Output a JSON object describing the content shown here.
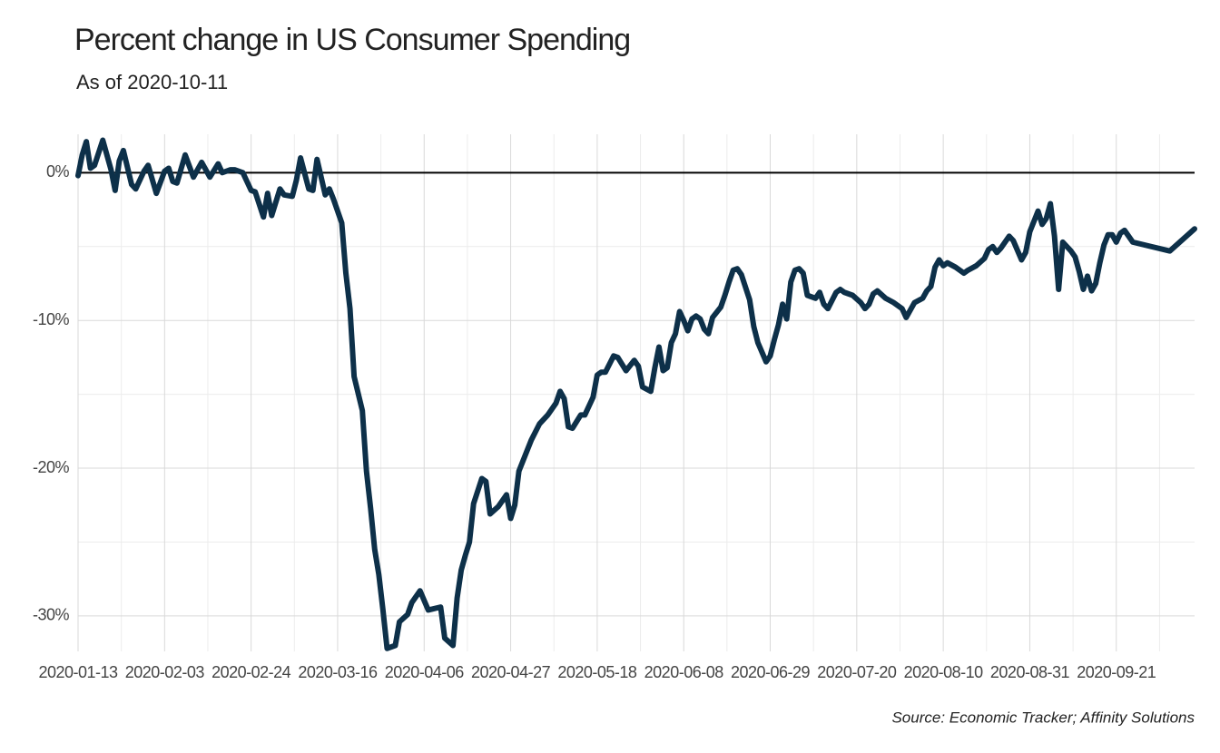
{
  "chart_data": {
    "type": "line",
    "title": "Percent change in US Consumer Spending",
    "subtitle": "As of 2020-10-11",
    "caption": "Source: Economic Tracker; Affinity Solutions",
    "x": [
      "2020-01-13",
      "2020-01-14",
      "2020-01-15",
      "2020-01-16",
      "2020-01-17",
      "2020-01-19",
      "2020-01-21",
      "2020-01-22",
      "2020-01-23",
      "2020-01-24",
      "2020-01-26",
      "2020-01-27",
      "2020-01-29",
      "2020-01-30",
      "2020-02-01",
      "2020-02-03",
      "2020-02-04",
      "2020-02-05",
      "2020-02-06",
      "2020-02-08",
      "2020-02-10",
      "2020-02-12",
      "2020-02-14",
      "2020-02-16",
      "2020-02-17",
      "2020-02-19",
      "2020-02-20",
      "2020-02-22",
      "2020-02-24",
      "2020-02-25",
      "2020-02-27",
      "2020-02-28",
      "2020-02-29",
      "2020-03-02",
      "2020-03-03",
      "2020-03-05",
      "2020-03-06",
      "2020-03-07",
      "2020-03-09",
      "2020-03-10",
      "2020-03-11",
      "2020-03-13",
      "2020-03-14",
      "2020-03-15",
      "2020-03-17",
      "2020-03-18",
      "2020-03-19",
      "2020-03-20",
      "2020-03-22",
      "2020-03-23",
      "2020-03-24",
      "2020-03-25",
      "2020-03-26",
      "2020-03-27",
      "2020-03-28",
      "2020-03-30",
      "2020-03-31",
      "2020-04-02",
      "2020-04-03",
      "2020-04-05",
      "2020-04-07",
      "2020-04-10",
      "2020-04-11",
      "2020-04-13",
      "2020-04-14",
      "2020-04-15",
      "2020-04-16",
      "2020-04-17",
      "2020-04-18",
      "2020-04-20",
      "2020-04-21",
      "2020-04-22",
      "2020-04-24",
      "2020-04-26",
      "2020-04-27",
      "2020-04-28",
      "2020-04-29",
      "2020-05-01",
      "2020-05-02",
      "2020-05-04",
      "2020-05-06",
      "2020-05-08",
      "2020-05-09",
      "2020-05-10",
      "2020-05-11",
      "2020-05-12",
      "2020-05-14",
      "2020-05-15",
      "2020-05-17",
      "2020-05-18",
      "2020-05-19",
      "2020-05-20",
      "2020-05-22",
      "2020-05-23",
      "2020-05-25",
      "2020-05-27",
      "2020-05-28",
      "2020-05-29",
      "2020-05-31",
      "2020-06-01",
      "2020-06-02",
      "2020-06-03",
      "2020-06-04",
      "2020-06-05",
      "2020-06-06",
      "2020-06-07",
      "2020-06-08",
      "2020-06-09",
      "2020-06-10",
      "2020-06-11",
      "2020-06-12",
      "2020-06-13",
      "2020-06-14",
      "2020-06-15",
      "2020-06-17",
      "2020-06-18",
      "2020-06-19",
      "2020-06-20",
      "2020-06-21",
      "2020-06-22",
      "2020-06-24",
      "2020-06-25",
      "2020-06-26",
      "2020-06-28",
      "2020-06-29",
      "2020-06-30",
      "2020-07-01",
      "2020-07-02",
      "2020-07-03",
      "2020-07-04",
      "2020-07-05",
      "2020-07-06",
      "2020-07-07",
      "2020-07-08",
      "2020-07-10",
      "2020-07-11",
      "2020-07-12",
      "2020-07-13",
      "2020-07-15",
      "2020-07-16",
      "2020-07-17",
      "2020-07-19",
      "2020-07-21",
      "2020-07-22",
      "2020-07-23",
      "2020-07-24",
      "2020-07-25",
      "2020-07-27",
      "2020-07-29",
      "2020-07-31",
      "2020-08-01",
      "2020-08-03",
      "2020-08-05",
      "2020-08-06",
      "2020-08-07",
      "2020-08-08",
      "2020-08-09",
      "2020-08-10",
      "2020-08-11",
      "2020-08-13",
      "2020-08-15",
      "2020-08-16",
      "2020-08-18",
      "2020-08-20",
      "2020-08-21",
      "2020-08-22",
      "2020-08-23",
      "2020-08-24",
      "2020-08-26",
      "2020-08-27",
      "2020-08-29",
      "2020-08-30",
      "2020-08-31",
      "2020-09-02",
      "2020-09-03",
      "2020-09-04",
      "2020-09-05",
      "2020-09-06",
      "2020-09-07",
      "2020-09-08",
      "2020-09-10",
      "2020-09-11",
      "2020-09-12",
      "2020-09-13",
      "2020-09-14",
      "2020-09-15",
      "2020-09-16",
      "2020-09-17",
      "2020-09-18",
      "2020-09-19",
      "2020-09-20",
      "2020-09-21",
      "2020-09-22",
      "2020-09-23",
      "2020-09-25",
      "2020-10-04",
      "2020-10-10"
    ],
    "series": [
      {
        "name": "Spending",
        "color": "#0d3049",
        "values": [
          -0.2,
          1.2,
          2.1,
          0.3,
          0.5,
          2.2,
          0.2,
          -1.2,
          0.8,
          1.5,
          -0.8,
          -1.1,
          0.1,
          0.5,
          -1.4,
          0.1,
          0.3,
          -0.6,
          -0.7,
          1.2,
          -0.3,
          0.7,
          -0.3,
          0.6,
          0.0,
          0.2,
          0.2,
          0.0,
          -1.2,
          -1.3,
          -3.0,
          -1.4,
          -2.9,
          -1.1,
          -1.5,
          -1.6,
          -0.5,
          1.0,
          -1.1,
          -1.2,
          0.9,
          -1.5,
          -1.1,
          -1.8,
          -3.4,
          -6.8,
          -9.2,
          -13.8,
          -16.1,
          -20.2,
          -22.7,
          -25.5,
          -27.2,
          -29.6,
          -32.2,
          -32.0,
          -30.4,
          -29.9,
          -29.1,
          -28.3,
          -29.6,
          -29.4,
          -31.5,
          -32.0,
          -28.8,
          -26.9,
          -25.9,
          -25.0,
          -22.4,
          -20.7,
          -20.9,
          -23.1,
          -22.6,
          -21.8,
          -23.4,
          -22.5,
          -20.2,
          -18.8,
          -18.1,
          -17.0,
          -16.4,
          -15.6,
          -14.8,
          -15.3,
          -17.2,
          -17.3,
          -16.4,
          -16.4,
          -15.2,
          -13.7,
          -13.5,
          -13.5,
          -12.4,
          -12.5,
          -13.4,
          -12.7,
          -13.1,
          -14.5,
          -14.8,
          -13.2,
          -11.8,
          -13.4,
          -13.2,
          -11.5,
          -10.9,
          -9.4,
          -10.0,
          -10.7,
          -9.9,
          -9.7,
          -9.9,
          -10.6,
          -10.9,
          -9.8,
          -9.1,
          -8.3,
          -7.4,
          -6.6,
          -6.5,
          -6.9,
          -8.6,
          -10.4,
          -11.5,
          -12.8,
          -12.4,
          -11.3,
          -10.3,
          -8.9,
          -9.9,
          -7.4,
          -6.6,
          -6.5,
          -6.8,
          -8.3,
          -8.5,
          -8.1,
          -8.9,
          -9.2,
          -8.1,
          -7.9,
          -8.1,
          -8.3,
          -8.8,
          -9.2,
          -8.9,
          -8.2,
          -8.0,
          -8.5,
          -8.8,
          -9.2,
          -9.8,
          -8.8,
          -8.5,
          -8.0,
          -7.7,
          -6.4,
          -5.9,
          -6.3,
          -6.1,
          -6.4,
          -6.8,
          -6.6,
          -6.3,
          -5.8,
          -5.2,
          -5.0,
          -5.4,
          -5.1,
          -4.3,
          -4.6,
          -5.9,
          -5.4,
          -4.0,
          -2.6,
          -3.5,
          -3.1,
          -2.1,
          -4.3,
          -7.9,
          -4.7,
          -5.3,
          -5.7,
          -6.7,
          -7.9,
          -7.0,
          -8.0,
          -7.5,
          -6.1,
          -4.9,
          -4.2,
          -4.2,
          -4.7,
          -4.1,
          -3.9,
          -4.7,
          -5.3,
          -3.8
        ]
      }
    ],
    "xlim": [
      "2020-01-13",
      "2020-10-10"
    ],
    "xticks": [
      "2020-01-13",
      "2020-02-03",
      "2020-02-24",
      "2020-03-16",
      "2020-04-06",
      "2020-04-27",
      "2020-05-18",
      "2020-06-08",
      "2020-06-29",
      "2020-07-20",
      "2020-08-10",
      "2020-08-31",
      "2020-09-21"
    ],
    "ylim": [
      -32.4,
      2.6
    ],
    "yticks": [
      {
        "value": -30,
        "label": "-30%"
      },
      {
        "value": -20,
        "label": "-20%"
      },
      {
        "value": -10,
        "label": "-10%"
      },
      {
        "value": 0,
        "label": "0%"
      }
    ],
    "grid": true,
    "reference_line": 0
  }
}
